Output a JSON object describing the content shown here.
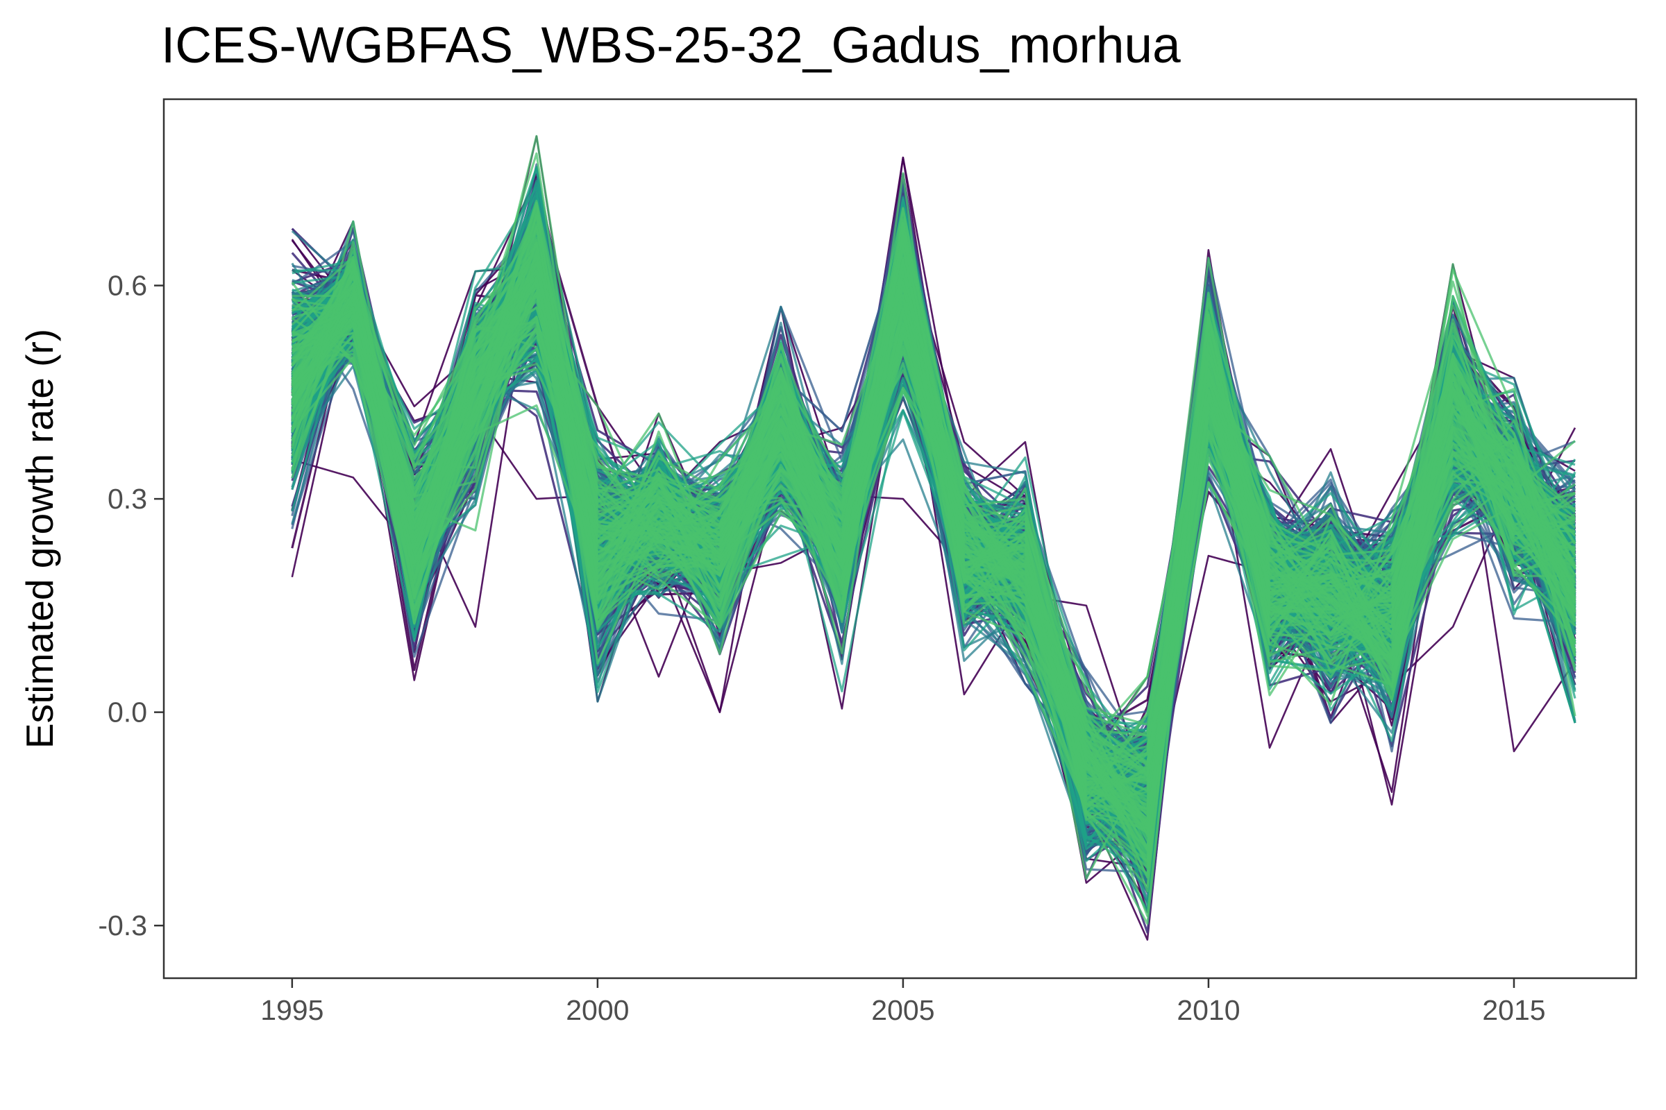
{
  "chart_data": {
    "type": "line",
    "title": "ICES-WGBFAS_WBS-25-32_Gadus_morhua",
    "xlabel": "",
    "ylabel": "Estimated growth rate (r)",
    "x": [
      1995,
      1996,
      1997,
      1998,
      1999,
      2000,
      2001,
      2002,
      2003,
      2004,
      2005,
      2006,
      2007,
      2008,
      2009,
      2010,
      2011,
      2012,
      2013,
      2014,
      2015,
      2016
    ],
    "xlim": [
      1992.9,
      2017.0
    ],
    "ylim": [
      -0.374,
      0.862
    ],
    "x_ticks": [
      1995,
      2000,
      2005,
      2010,
      2015
    ],
    "y_ticks": [
      -0.3,
      0.0,
      0.3,
      0.6
    ],
    "y_tick_labels": [
      "-0.3",
      "0.0",
      "0.3",
      "0.6"
    ],
    "grid": false,
    "panel_border": true,
    "series_count": 600,
    "palette": [
      "#440154",
      "#46337e",
      "#365c8d",
      "#277f8e",
      "#1fa187",
      "#4ac16d"
    ],
    "mean": [
      0.46,
      0.58,
      0.23,
      0.45,
      0.62,
      0.22,
      0.28,
      0.22,
      0.4,
      0.23,
      0.6,
      0.23,
      0.2,
      -0.09,
      -0.13,
      0.48,
      0.19,
      0.17,
      0.13,
      0.43,
      0.31,
      0.19
    ],
    "min": [
      0.19,
      0.33,
      0.045,
      0.12,
      0.3,
      0.015,
      0.05,
      0.0,
      0.21,
      0.005,
      0.3,
      0.025,
      0.04,
      -0.24,
      -0.32,
      0.22,
      -0.05,
      -0.015,
      -0.13,
      0.12,
      -0.055,
      -0.015
    ],
    "max": [
      0.68,
      0.69,
      0.43,
      0.62,
      0.81,
      0.43,
      0.42,
      0.38,
      0.57,
      0.4,
      0.78,
      0.38,
      0.38,
      0.15,
      0.05,
      0.65,
      0.36,
      0.37,
      0.31,
      0.63,
      0.47,
      0.4
    ]
  }
}
